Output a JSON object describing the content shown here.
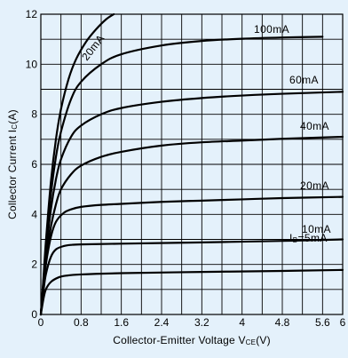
{
  "chart_data": {
    "type": "line",
    "xlabel": "Collector-Emitter Voltage V",
    "xlabel_sub": "CE",
    "xlabel_unit": "(V)",
    "ylabel": "Collector Current I",
    "ylabel_sub": "C",
    "ylabel_unit": "(A)",
    "xlim": [
      0,
      6
    ],
    "ylim": [
      0,
      12
    ],
    "x_ticks": [
      0,
      0.8,
      1.6,
      2.4,
      3.2,
      4,
      4.8,
      5.6,
      6
    ],
    "x_tick_labels": [
      "0",
      "0.8",
      "1.6",
      "2.4",
      "3.2",
      "4",
      "4.8",
      "5.6",
      "6"
    ],
    "y_ticks": [
      0,
      2,
      4,
      6,
      8,
      10,
      12
    ],
    "y_tick_labels": [
      "0",
      "2",
      "4",
      "6",
      "8",
      "10",
      "12"
    ],
    "grid": true,
    "series": [
      {
        "name": "IB=5mA",
        "label_main": "I",
        "label_sub": "B",
        "label_rest": "=5mA",
        "x": [
          0,
          0.05,
          0.1,
          0.2,
          0.35,
          0.5,
          0.8,
          1.6,
          3.2,
          4.8,
          6
        ],
        "y": [
          0,
          0.6,
          1.0,
          1.3,
          1.48,
          1.55,
          1.6,
          1.65,
          1.7,
          1.74,
          1.78
        ]
      },
      {
        "name": "10mA",
        "label_main": "10mA",
        "x": [
          0,
          0.05,
          0.1,
          0.2,
          0.3,
          0.45,
          0.6,
          0.8,
          1.6,
          3.2,
          4.8,
          6
        ],
        "y": [
          0,
          0.9,
          1.6,
          2.3,
          2.6,
          2.73,
          2.78,
          2.8,
          2.83,
          2.88,
          2.94,
          3.0
        ]
      },
      {
        "name": "20mA",
        "label_main": "20mA",
        "x": [
          0,
          0.05,
          0.1,
          0.2,
          0.3,
          0.45,
          0.6,
          0.8,
          1.2,
          1.6,
          2.4,
          3.2,
          4,
          4.8,
          6
        ],
        "y": [
          0,
          1.1,
          2.0,
          3.1,
          3.7,
          4.05,
          4.2,
          4.3,
          4.38,
          4.42,
          4.5,
          4.55,
          4.6,
          4.65,
          4.7
        ]
      },
      {
        "name": "40mA",
        "label_main": "40mA",
        "x": [
          0,
          0.05,
          0.1,
          0.2,
          0.3,
          0.4,
          0.6,
          0.8,
          1.2,
          1.6,
          2.4,
          3.2,
          4,
          4.8,
          6
        ],
        "y": [
          0,
          1.1,
          2.1,
          3.5,
          4.4,
          5.0,
          5.6,
          5.95,
          6.3,
          6.5,
          6.75,
          6.88,
          6.95,
          7.02,
          7.1
        ]
      },
      {
        "name": "60mA",
        "label_main": "60mA",
        "x": [
          0,
          0.05,
          0.1,
          0.2,
          0.3,
          0.4,
          0.6,
          0.8,
          1.2,
          1.6,
          2.4,
          3.2,
          4,
          4.8,
          6
        ],
        "y": [
          0,
          1.2,
          2.4,
          4.2,
          5.4,
          6.2,
          7.1,
          7.55,
          8.0,
          8.25,
          8.5,
          8.65,
          8.75,
          8.82,
          8.9
        ]
      },
      {
        "name": "100mA",
        "label_main": "100mA",
        "x": [
          0,
          0.05,
          0.1,
          0.2,
          0.3,
          0.4,
          0.6,
          0.8,
          1.2,
          1.6,
          2.4,
          3.2,
          4,
          4.8,
          5.6
        ],
        "y": [
          0,
          1.3,
          2.6,
          4.8,
          6.3,
          7.3,
          8.6,
          9.3,
          10.0,
          10.4,
          10.75,
          10.93,
          11.02,
          11.07,
          11.1
        ]
      },
      {
        "name": "20mA",
        "label_main": "20mA",
        "x": [
          0,
          0.05,
          0.1,
          0.2,
          0.3,
          0.4,
          0.55,
          0.7,
          0.9,
          1.1,
          1.3,
          1.45
        ],
        "y": [
          0,
          1.4,
          2.9,
          5.3,
          7.0,
          8.2,
          9.4,
          10.2,
          10.9,
          11.4,
          11.8,
          12.0
        ]
      }
    ]
  }
}
